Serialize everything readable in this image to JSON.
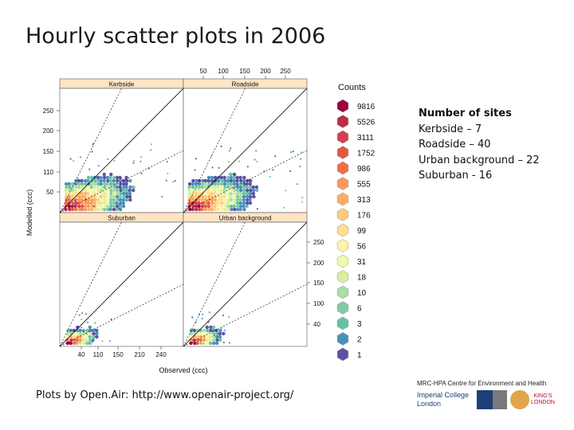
{
  "slide": {
    "title": "Hourly scatter plots in 2006",
    "credit": "Plots by Open.Air: http://www.openair-project.org/"
  },
  "sites_info": {
    "heading": "Number of sites",
    "lines": [
      "Kerbside – 7",
      "Roadside – 40",
      "Urban background – 22",
      "Suburban - 16"
    ]
  },
  "footer": {
    "org": "MRC-HPA Centre for Environment and Health",
    "imperial": [
      "Imperial College",
      "London"
    ],
    "kings": [
      "KING'S",
      "LONDON"
    ]
  },
  "chart_data": {
    "type": "heatmap",
    "panels": [
      {
        "name": "Kerbside",
        "row": 0,
        "col": 0
      },
      {
        "name": "Roadside",
        "row": 0,
        "col": 1
      },
      {
        "name": "Suburban",
        "row": 1,
        "col": 0
      },
      {
        "name": "Urban background",
        "row": 1,
        "col": 1
      }
    ],
    "xlabel": "Observed (ccc)",
    "ylabel": "Modelled (ccc)",
    "top_ticks": [
      "50",
      "100",
      "150",
      "200",
      "250"
    ],
    "bottom_ticks": [
      "40",
      "110",
      "150",
      "210",
      "240"
    ],
    "left_ticks": [
      "250",
      "200",
      "150",
      "110",
      "50"
    ],
    "right_ticks": [
      "250",
      "200",
      "150",
      "100",
      "40"
    ],
    "legend": {
      "title": "Counts",
      "labels": [
        "9816",
        "5526",
        "3111",
        "1752",
        "986",
        "555",
        "313",
        "176",
        "99",
        "56",
        "31",
        "18",
        "10",
        "6",
        "3",
        "2",
        "1"
      ],
      "colors": [
        "#9e0142",
        "#c02a4a",
        "#d53e4f",
        "#e8553e",
        "#f46d43",
        "#f99a5a",
        "#fdae61",
        "#fdcb7a",
        "#fee08b",
        "#fff1a8",
        "#f1f9a9",
        "#d9ef9b",
        "#abdda4",
        "#82c9a5",
        "#66c2a5",
        "#4a8fbc",
        "#5e4fa2"
      ]
    }
  }
}
